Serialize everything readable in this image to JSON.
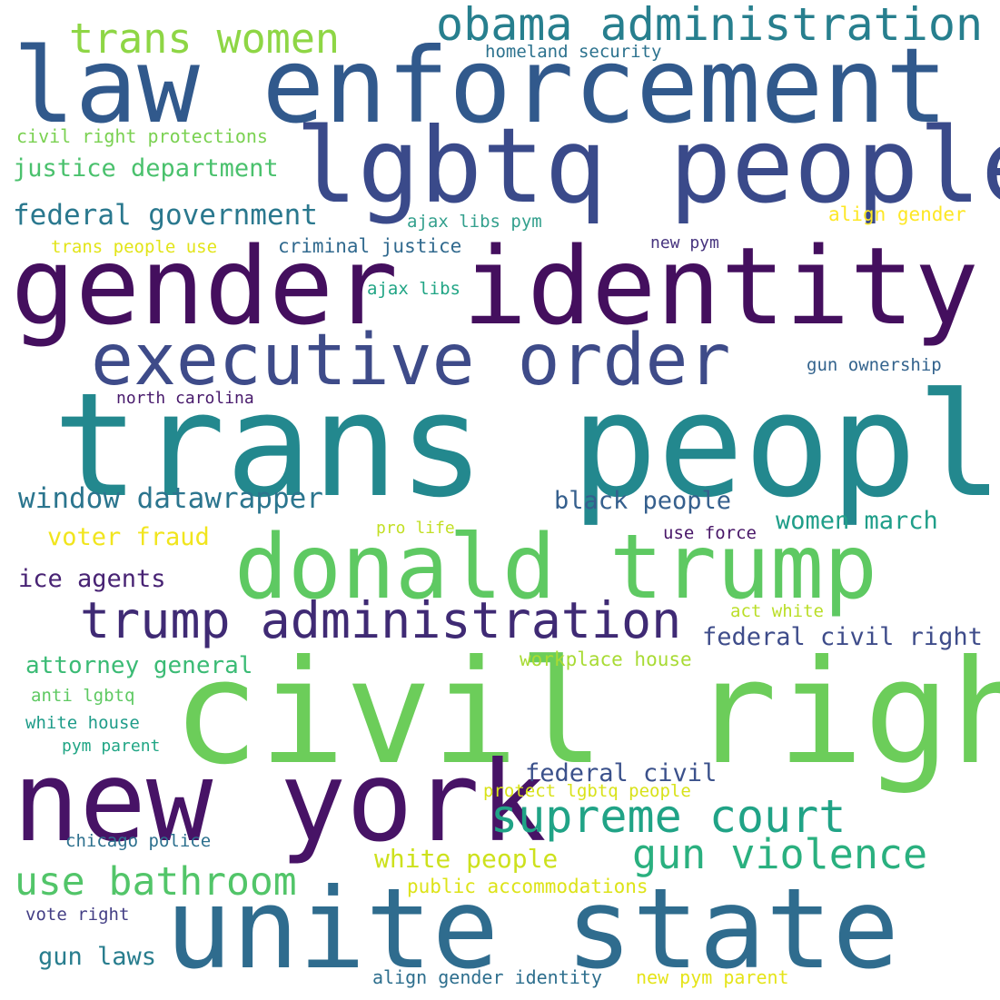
{
  "words": [
    {
      "text": "trans people",
      "color": "#23888e"
    },
    {
      "text": "civil right",
      "color": "#6ccd5a"
    },
    {
      "text": "gender identity",
      "color": "#440f5e"
    },
    {
      "text": "law enforcement",
      "color": "#31598c"
    },
    {
      "text": "lgbtq people",
      "color": "#3a4a8a"
    },
    {
      "text": "unite state",
      "color": "#2f6c8e"
    },
    {
      "text": "new york",
      "color": "#471366"
    },
    {
      "text": "donald trump",
      "color": "#5ec962"
    },
    {
      "text": "executive order",
      "color": "#3e4b89"
    },
    {
      "text": "trump administration",
      "color": "#3f2a74"
    },
    {
      "text": "obama administration",
      "color": "#277f8e"
    },
    {
      "text": "supreme court",
      "color": "#20a386"
    },
    {
      "text": "gun violence",
      "color": "#2ab07f"
    },
    {
      "text": "use bathroom",
      "color": "#52c569"
    },
    {
      "text": "trans women",
      "color": "#8ed645"
    },
    {
      "text": "window datawrapper",
      "color": "#2b758e"
    },
    {
      "text": "federal government",
      "color": "#2a788e"
    },
    {
      "text": "justice department",
      "color": "#4ac16d"
    },
    {
      "text": "white people",
      "color": "#cde11d"
    },
    {
      "text": "federal civil right",
      "color": "#3e4c8a"
    },
    {
      "text": "women march",
      "color": "#1f9e89"
    },
    {
      "text": "black people",
      "color": "#355f8d"
    },
    {
      "text": "federal civil",
      "color": "#3b518b"
    },
    {
      "text": "attorney general",
      "color": "#3bbb75"
    },
    {
      "text": "ice agents",
      "color": "#482374"
    },
    {
      "text": "voter fraud",
      "color": "#f1e51d"
    },
    {
      "text": "gun laws",
      "color": "#287d8e"
    },
    {
      "text": "criminal justice",
      "color": "#30698e"
    },
    {
      "text": "civil right protections",
      "color": "#7ad151"
    },
    {
      "text": "public accommodations",
      "color": "#dde318"
    },
    {
      "text": "workplace house",
      "color": "#a8db34"
    },
    {
      "text": "align gender identity",
      "color": "#2e6f8e"
    },
    {
      "text": "new pym parent",
      "color": "#e5e419"
    },
    {
      "text": "protect lgbtq people",
      "color": "#d8e219"
    },
    {
      "text": "homeland security",
      "color": "#2c728e"
    },
    {
      "text": "align gender",
      "color": "#fde725"
    },
    {
      "text": "ajax libs pym",
      "color": "#33a08d"
    },
    {
      "text": "trans people use",
      "color": "#e2e418"
    },
    {
      "text": "new pym",
      "color": "#46337e"
    },
    {
      "text": "ajax libs",
      "color": "#21a585"
    },
    {
      "text": "gun ownership",
      "color": "#33638d"
    },
    {
      "text": "north carolina",
      "color": "#481a6c"
    },
    {
      "text": "pro life",
      "color": "#c2df23"
    },
    {
      "text": "use force",
      "color": "#481668"
    },
    {
      "text": "act white",
      "color": "#bade28"
    },
    {
      "text": "anti lgbtq",
      "color": "#5ec962"
    },
    {
      "text": "white house",
      "color": "#1e9c89"
    },
    {
      "text": "pym parent",
      "color": "#21a685"
    },
    {
      "text": "chicago police",
      "color": "#2d708e"
    },
    {
      "text": "vote right",
      "color": "#433e85"
    }
  ]
}
